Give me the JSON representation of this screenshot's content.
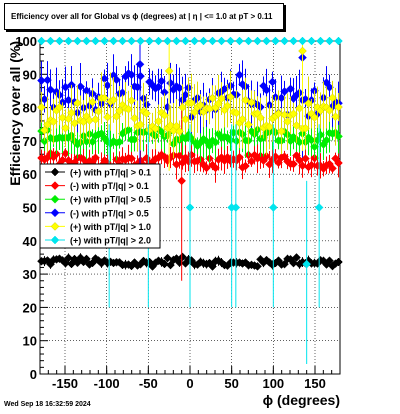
{
  "chart_data": {
    "type": "scatter",
    "title": "Efficiency over all for Global vs ϕ (degrees) at | η | <= 1.0 at pT > 0.11",
    "xlabel": "ϕ (degrees)",
    "ylabel": "Efficiency over all (%)",
    "xlim": [
      -180,
      180
    ],
    "ylim": [
      0,
      100
    ],
    "x_ticks": [
      -150,
      -100,
      -50,
      0,
      50,
      100,
      150
    ],
    "y_ticks": [
      0,
      10,
      20,
      30,
      40,
      50,
      60,
      70,
      80,
      90,
      100
    ],
    "grid": true,
    "legend_position": "middle-left",
    "series": [
      {
        "name": "(+) with pT/|q| > 0.1",
        "color": "#000000",
        "marker": "diamond",
        "level": 33.5,
        "spread": 1.2,
        "err": 1.0,
        "outliers": []
      },
      {
        "name": "(-) with pT/|q| > 0.1",
        "color": "#ff0000",
        "marker": "diamond",
        "level": 64,
        "spread": 1.8,
        "err": 3,
        "outliers": [
          [
            -10,
            58
          ]
        ]
      },
      {
        "name": "(+) with pT/|q| > 0.5",
        "color": "#00ee00",
        "marker": "diamond",
        "level": 71,
        "spread": 2,
        "err": 4,
        "outliers": []
      },
      {
        "name": "(-) with pT/|q| > 0.5",
        "color": "#0000ff",
        "marker": "diamond",
        "level": 84,
        "spread": 5,
        "err": 5,
        "outliers": [
          [
            135,
            95
          ],
          [
            -60,
            93
          ]
        ]
      },
      {
        "name": "(+) with pT/|q| > 1.0",
        "color": "#ffff00",
        "marker": "diamond",
        "level": 78,
        "spread": 4,
        "err": 6,
        "outliers": [
          [
            135,
            97
          ],
          [
            -25,
            91
          ]
        ]
      },
      {
        "name": "(+) with pT/|q| > 2.0",
        "color": "#00e5ee",
        "marker": "diamond",
        "level": 100,
        "spread": 0,
        "err": 0,
        "outliers": [
          [
            -97,
            50
          ],
          [
            -50,
            50
          ],
          [
            0,
            50
          ],
          [
            50,
            50
          ],
          [
            55,
            50
          ],
          [
            100,
            50
          ],
          [
            140,
            33
          ],
          [
            155,
            50
          ]
        ]
      }
    ]
  },
  "timestamp": "Wed Sep 18 16:32:59 2024"
}
